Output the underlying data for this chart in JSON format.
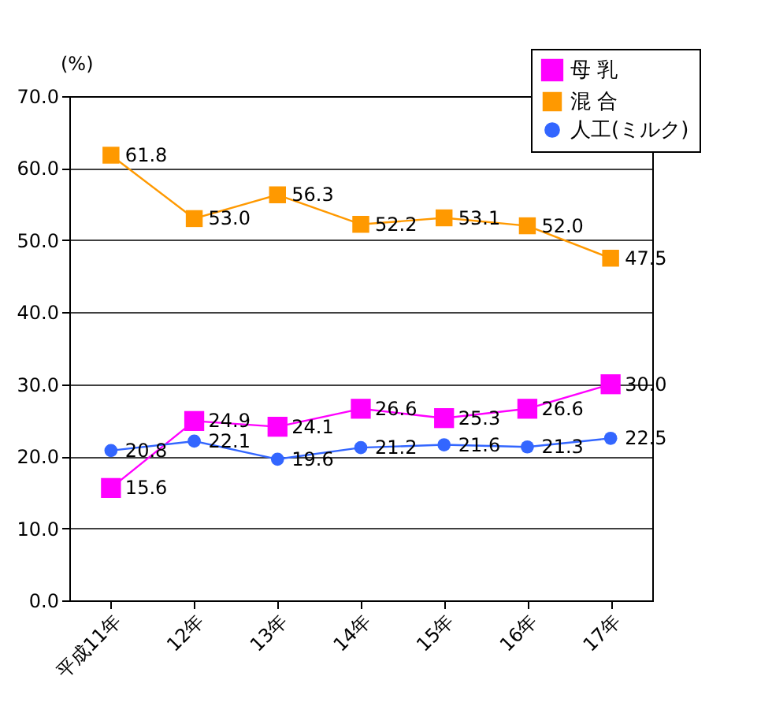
{
  "chart_data": {
    "type": "line",
    "ylabel": "(%)",
    "categories": [
      "平成11年",
      "12年",
      "13年",
      "14年",
      "15年",
      "16年",
      "17年"
    ],
    "series": [
      {
        "name": "母 乳",
        "color": "#ff00ff",
        "marker": "square",
        "values": [
          15.6,
          24.9,
          24.1,
          26.6,
          25.3,
          26.6,
          30.0
        ],
        "value_labels": [
          "15.6",
          "24.9",
          "24.1",
          "26.6",
          "25.3",
          "26.6",
          "30.0"
        ]
      },
      {
        "name": "混 合",
        "color": "#ff9900",
        "marker": "square",
        "values": [
          61.8,
          53.0,
          56.3,
          52.2,
          53.1,
          52.0,
          47.5
        ],
        "value_labels": [
          "61.8",
          "53.0",
          "56.3",
          "52.2",
          "53.1",
          "52.0",
          "47.5"
        ]
      },
      {
        "name": "人工(ミルク)",
        "color": "#3366ff",
        "marker": "circle",
        "values": [
          20.8,
          22.1,
          19.6,
          21.2,
          21.6,
          21.3,
          22.5
        ],
        "value_labels": [
          "20.8",
          "22.1",
          "19.6",
          "21.2",
          "21.6",
          "21.3",
          "22.5"
        ]
      }
    ],
    "ylim": [
      0,
      70
    ],
    "yticks": [
      {
        "value": 0,
        "label": "0.0"
      },
      {
        "value": 10,
        "label": "10.0"
      },
      {
        "value": 20,
        "label": "20.0"
      },
      {
        "value": 30,
        "label": "30.0"
      },
      {
        "value": 40,
        "label": "40.0"
      },
      {
        "value": 50,
        "label": "50.0"
      },
      {
        "value": 60,
        "label": "60.0"
      },
      {
        "value": 70,
        "label": "70.0"
      }
    ],
    "grid": "y",
    "legend": "top right",
    "line_style": "solid"
  }
}
